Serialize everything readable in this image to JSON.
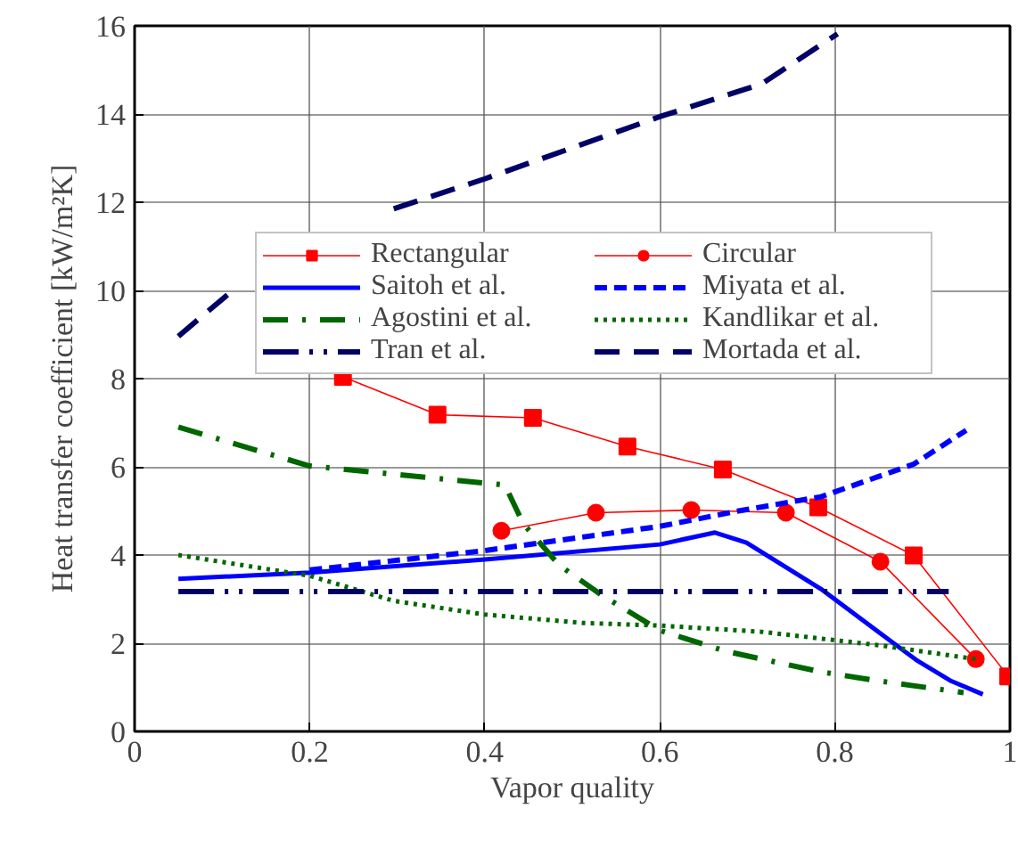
{
  "chart_data": {
    "type": "line",
    "xlabel": "Vapor quality",
    "ylabel": "Heat transfer coefficient [kW/m²K]",
    "xlim": [
      0,
      1
    ],
    "ylim": [
      0,
      16
    ],
    "xticks": [
      0,
      0.2,
      0.4,
      0.6,
      0.8,
      1
    ],
    "yticks": [
      0,
      2,
      4,
      6,
      8,
      10,
      12,
      14,
      16
    ],
    "grid": true,
    "legend": "top",
    "series": [
      {
        "name": "Rectangular",
        "color": "#ff0000",
        "marker": "square",
        "line_style": "solid",
        "x": [
          0.238,
          0.346,
          0.455,
          0.563,
          0.672,
          0.781,
          0.89,
          0.998
        ],
        "values": [
          8.04,
          7.18,
          7.11,
          6.46,
          5.94,
          5.08,
          3.99,
          1.25
        ]
      },
      {
        "name": "Circular",
        "color": "#ff0000",
        "marker": "circle",
        "line_style": "solid",
        "x": [
          0.419,
          0.527,
          0.636,
          0.744,
          0.852,
          0.961
        ],
        "values": [
          4.55,
          4.96,
          5.02,
          4.96,
          3.85,
          1.64
        ]
      },
      {
        "name": "Saitoh et al.",
        "color": "#0000ff",
        "marker": "none",
        "line_style": "solid",
        "x": [
          0.05,
          0.2,
          0.4,
          0.6,
          0.663,
          0.699,
          0.784,
          0.852,
          0.893,
          0.933,
          0.969
        ],
        "values": [
          3.46,
          3.6,
          3.9,
          4.24,
          4.51,
          4.28,
          3.23,
          2.22,
          1.62,
          1.14,
          0.84
        ]
      },
      {
        "name": "Miyata et al.",
        "color": "#0000ff",
        "marker": "none",
        "line_style": "dashed",
        "x": [
          0.2,
          0.4,
          0.6,
          0.69,
          0.784,
          0.89,
          0.95
        ],
        "values": [
          3.66,
          4.1,
          4.65,
          5.0,
          5.32,
          6.06,
          6.83
        ]
      },
      {
        "name": "Agostini et al.",
        "color": "#006600",
        "marker": "none",
        "line_style": "dashdot",
        "x": [
          0.05,
          0.2,
          0.4,
          0.423,
          0.444,
          0.485,
          0.533,
          0.6,
          0.675,
          0.784,
          0.852,
          0.947
        ],
        "values": [
          6.9,
          6.02,
          5.63,
          5.59,
          4.71,
          3.77,
          3.1,
          2.29,
          1.82,
          1.35,
          1.14,
          0.88
        ]
      },
      {
        "name": "Kandlikar et al.",
        "color": "#006600",
        "marker": "none",
        "line_style": "dotted",
        "x": [
          0.05,
          0.2,
          0.296,
          0.4,
          0.512,
          0.6,
          0.716,
          0.852,
          0.961
        ],
        "values": [
          4.0,
          3.53,
          2.96,
          2.65,
          2.46,
          2.4,
          2.26,
          1.95,
          1.64
        ]
      },
      {
        "name": "Tran et al.",
        "color": "#000066",
        "marker": "none",
        "line_style": "dashdotdot",
        "x": [
          0.05,
          0.93
        ],
        "values": [
          3.17,
          3.17
        ]
      },
      {
        "name": "Mortada et al.",
        "color": "#000066",
        "marker": "none",
        "line_style": "longdash",
        "x": [
          0.05,
          0.112,
          0.2,
          0.296,
          0.4,
          0.6,
          0.716,
          0.803
        ],
        "values": [
          8.96,
          10.0,
          null,
          11.85,
          12.53,
          13.94,
          14.68,
          15.82
        ]
      }
    ]
  }
}
